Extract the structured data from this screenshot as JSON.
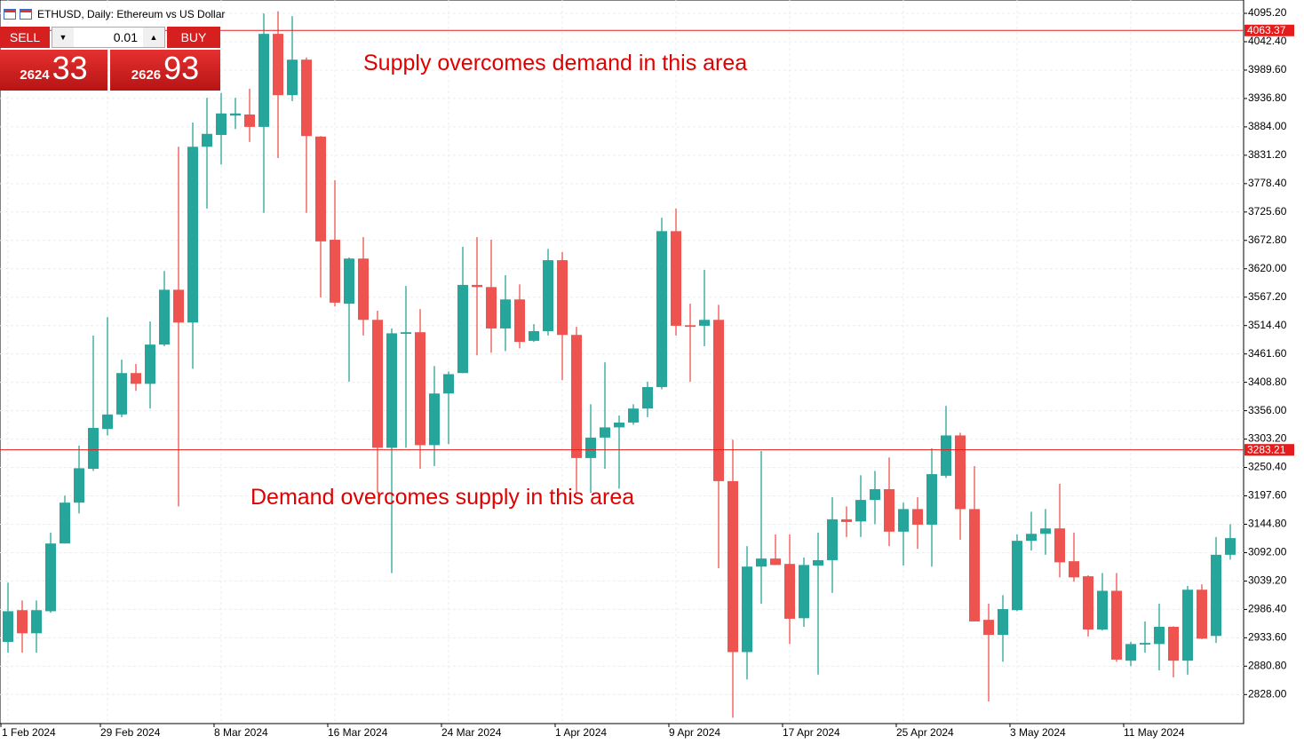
{
  "trade_panel": {
    "sell": "SELL",
    "buy": "BUY",
    "volume": "0.01",
    "bid": {
      "main": "2624",
      "pips": "33"
    },
    "ask": {
      "main": "2626",
      "pips": "93"
    }
  },
  "chart_data": {
    "type": "candlestick",
    "title": "ETHUSD, Daily:  Ethereum vs US Dollar",
    "annotations": [
      "Supply overcomes demand in this area",
      "Demand overcomes supply in this area"
    ],
    "annotation_color": "#e00000",
    "up_color": "#26a69a",
    "down_color": "#ef5350",
    "hlines": [
      4063.37,
      3283.21
    ],
    "hline_color": "#e41c1c",
    "grid": true,
    "categories": [
      "1 Feb 2024",
      null,
      null,
      null,
      null,
      null,
      null,
      "29 Feb 2024",
      null,
      null,
      null,
      null,
      null,
      null,
      null,
      "8 Mar 2024",
      null,
      null,
      null,
      null,
      null,
      null,
      null,
      "16 Mar 2024",
      null,
      null,
      null,
      null,
      null,
      null,
      null,
      "24 Mar 2024",
      null,
      null,
      null,
      null,
      null,
      null,
      null,
      "1 Apr 2024",
      null,
      null,
      null,
      null,
      null,
      null,
      null,
      "9 Apr 2024",
      null,
      null,
      null,
      null,
      null,
      null,
      null,
      "17 Apr 2024",
      null,
      null,
      null,
      null,
      null,
      null,
      null,
      "25 Apr 2024",
      null,
      null,
      null,
      null,
      null,
      null,
      null,
      "3 May 2024",
      null,
      null,
      null,
      null,
      null,
      null,
      null,
      "11 May 2024",
      null,
      null,
      null,
      null,
      null,
      null,
      null
    ],
    "open": [
      2926,
      2985,
      2942,
      2983,
      3109,
      3185,
      3248,
      3322,
      3349,
      3426,
      3406,
      3479,
      3581,
      3520,
      3847,
      3869,
      3905,
      3907,
      3884,
      4057,
      3943,
      4009,
      3866,
      3674,
      3555,
      3639,
      3525,
      3287,
      3499,
      3502,
      3292,
      3388,
      3426,
      3590,
      3586,
      3509,
      3563,
      3486,
      3504,
      3636,
      3497,
      3268,
      3306,
      3325,
      3334,
      3360,
      3400,
      3690,
      3515,
      3514,
      3525,
      3225,
      2907,
      3066,
      3081,
      3071,
      2970,
      3068,
      3078,
      3154,
      3150,
      3190,
      3210,
      3131,
      3173,
      3144,
      3235,
      3310,
      3173,
      2967,
      2939,
      2985,
      3114,
      3127,
      3137,
      3076,
      3048,
      2949,
      3021,
      2891,
      2921,
      2922,
      2954,
      2891,
      3023,
      2937,
      3088
    ],
    "high": [
      3036,
      3003,
      3003,
      3129,
      3198,
      3291,
      3496,
      3530,
      3451,
      3443,
      3522,
      3616,
      3847,
      3892,
      3938,
      3947,
      3938,
      3955,
      4095,
      4099,
      4090,
      4013,
      3867,
      3785,
      3641,
      3679,
      3542,
      3509,
      3588,
      3545,
      3439,
      3429,
      3661,
      3679,
      3674,
      3608,
      3591,
      3517,
      3657,
      3651,
      3512,
      3368,
      3446,
      3347,
      3368,
      3410,
      3715,
      3732,
      3555,
      3618,
      3553,
      3302,
      3104,
      3281,
      3126,
      3126,
      3083,
      3129,
      3195,
      3178,
      3236,
      3244,
      3269,
      3185,
      3195,
      3286,
      3365,
      3315,
      3253,
      2997,
      3013,
      3126,
      3168,
      3173,
      3220,
      3129,
      3050,
      3054,
      3054,
      2926,
      2964,
      2997,
      2955,
      3030,
      3033,
      3121,
      3145
    ],
    "low": [
      2906,
      2906,
      2906,
      2980,
      3109,
      3165,
      3244,
      3310,
      3344,
      3393,
      3360,
      3476,
      3178,
      3434,
      3732,
      3814,
      3880,
      3856,
      3724,
      3826,
      3932,
      3724,
      3567,
      3550,
      3410,
      3496,
      3203,
      3054,
      3287,
      3248,
      3253,
      3294,
      3426,
      3459,
      3464,
      3467,
      3472,
      3484,
      3496,
      3413,
      3203,
      3203,
      3248,
      3211,
      3330,
      3344,
      3396,
      3496,
      3410,
      3476,
      3063,
      2785,
      2856,
      2997,
      3069,
      2922,
      2954,
      2865,
      3017,
      3121,
      3121,
      3145,
      3104,
      3068,
      3099,
      3066,
      3231,
      3116,
      2964,
      2815,
      2889,
      2983,
      3096,
      3088,
      3046,
      3038,
      2936,
      2947,
      2889,
      2881,
      2906,
      2873,
      2860,
      2865,
      2931,
      2924,
      3079
    ],
    "close": [
      2983,
      2942,
      2985,
      3109,
      3185,
      3249,
      3324,
      3349,
      3426,
      3406,
      3479,
      3581,
      3520,
      3847,
      3871,
      3909,
      3909,
      3884,
      4057,
      3943,
      4009,
      3867,
      3671,
      3557,
      3639,
      3525,
      3287,
      3500,
      3502,
      3292,
      3388,
      3424,
      3590,
      3586,
      3509,
      3563,
      3484,
      3504,
      3636,
      3497,
      3268,
      3306,
      3325,
      3334,
      3360,
      3400,
      3690,
      3514,
      3512,
      3525,
      3225,
      2907,
      3066,
      3081,
      3069,
      2969,
      3069,
      3078,
      3154,
      3149,
      3190,
      3210,
      3131,
      3173,
      3144,
      3238,
      3310,
      3173,
      2964,
      2939,
      2987,
      3114,
      3127,
      3137,
      3074,
      3046,
      2949,
      3021,
      2893,
      2922,
      2924,
      2954,
      2891,
      3023,
      2932,
      3088,
      3119
    ],
    "ylim": [
      2774,
      4120
    ],
    "yticks": [
      {
        "value": 4095.2,
        "label": "4095.20"
      },
      {
        "value": 4042.4,
        "label": "4042.40"
      },
      {
        "value": 3989.6,
        "label": "3989.60"
      },
      {
        "value": 3936.8,
        "label": "3936.80"
      },
      {
        "value": 3884,
        "label": "3884.00"
      },
      {
        "value": 3831.2,
        "label": "3831.20"
      },
      {
        "value": 3778.4,
        "label": "3778.40"
      },
      {
        "value": 3725.6,
        "label": "3725.60"
      },
      {
        "value": 3672.8,
        "label": "3672.80"
      },
      {
        "value": 3620,
        "label": "3620.00"
      },
      {
        "value": 3567.2,
        "label": "3567.20"
      },
      {
        "value": 3514.4,
        "label": "3514.40"
      },
      {
        "value": 3461.6,
        "label": "3461.60"
      },
      {
        "value": 3408.8,
        "label": "3408.80"
      },
      {
        "value": 3356,
        "label": "3356.00"
      },
      {
        "value": 3303.2,
        "label": "3303.20"
      },
      {
        "value": 3250.4,
        "label": "3250.40"
      },
      {
        "value": 3197.6,
        "label": "3197.60"
      },
      {
        "value": 3144.8,
        "label": "3144.80"
      },
      {
        "value": 3092,
        "label": "3092.00"
      },
      {
        "value": 3039.2,
        "label": "3039.20"
      },
      {
        "value": 2986.4,
        "label": "2986.40"
      },
      {
        "value": 2933.6,
        "label": "2933.60"
      },
      {
        "value": 2880.8,
        "label": "2880.80"
      },
      {
        "value": 2828,
        "label": "2828.00"
      }
    ]
  }
}
